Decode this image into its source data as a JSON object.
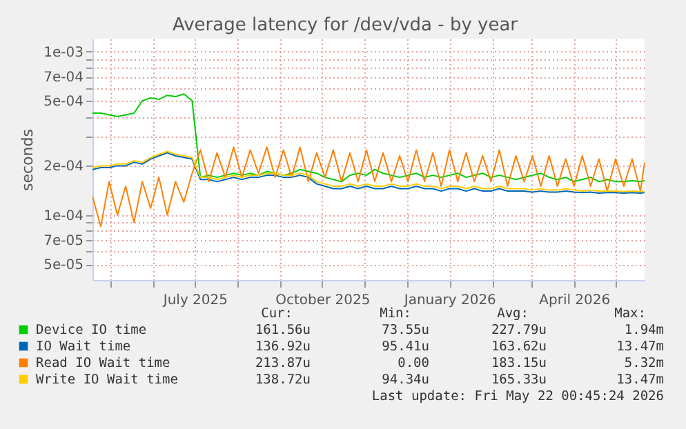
{
  "chart_data": {
    "type": "line",
    "title": "Average latency for /dev/vda - by year",
    "ylabel": "seconds",
    "log": true,
    "grid": true,
    "legend": "bottom",
    "line_style": "solid",
    "marker": "none",
    "xlim": [
      "2025-04-18",
      "2026-05-22"
    ],
    "xticks": [
      {
        "value": "2025-05-01",
        "label": null
      },
      {
        "value": "2025-06-01",
        "label": null
      },
      {
        "value": "2025-07-01",
        "label": "July 2025"
      },
      {
        "value": "2025-08-01",
        "label": null
      },
      {
        "value": "2025-09-01",
        "label": null
      },
      {
        "value": "2025-10-01",
        "label": "October 2025"
      },
      {
        "value": "2025-11-01",
        "label": null
      },
      {
        "value": "2025-12-01",
        "label": null
      },
      {
        "value": "2026-01-01",
        "label": "January 2026"
      },
      {
        "value": "2026-02-01",
        "label": null
      },
      {
        "value": "2026-03-01",
        "label": null
      },
      {
        "value": "2026-04-01",
        "label": "April 2026"
      },
      {
        "value": "2026-05-01",
        "label": null
      }
    ],
    "ylim": [
      4e-05,
      0.0012
    ],
    "yticks": [
      {
        "value": 5e-05,
        "label": "5e-05"
      },
      {
        "value": 6e-05,
        "label": null
      },
      {
        "value": 7e-05,
        "label": "7e-05"
      },
      {
        "value": 8e-05,
        "label": null
      },
      {
        "value": 9e-05,
        "label": null
      },
      {
        "value": 0.0001,
        "label": "1e-04"
      },
      {
        "value": 0.0002,
        "label": "2e-04"
      },
      {
        "value": 0.0003,
        "label": null
      },
      {
        "value": 0.0004,
        "label": null
      },
      {
        "value": 0.0005,
        "label": "5e-04"
      },
      {
        "value": 0.0006,
        "label": null
      },
      {
        "value": 0.0007,
        "label": "7e-04"
      },
      {
        "value": 0.0008,
        "label": null
      },
      {
        "value": 0.0009,
        "label": null
      },
      {
        "value": 0.001,
        "label": "1e-03"
      }
    ],
    "x": [
      "2025-04-18",
      "2025-04-24",
      "2025-04-30",
      "2025-05-06",
      "2025-05-12",
      "2025-05-18",
      "2025-05-24",
      "2025-05-30",
      "2025-06-05",
      "2025-06-11",
      "2025-06-17",
      "2025-06-23",
      "2025-06-29",
      "2025-07-05",
      "2025-07-11",
      "2025-07-17",
      "2025-07-23",
      "2025-07-29",
      "2025-08-04",
      "2025-08-10",
      "2025-08-16",
      "2025-08-22",
      "2025-08-28",
      "2025-09-03",
      "2025-09-09",
      "2025-09-15",
      "2025-09-21",
      "2025-09-27",
      "2025-10-03",
      "2025-10-09",
      "2025-10-15",
      "2025-10-21",
      "2025-10-27",
      "2025-11-02",
      "2025-11-08",
      "2025-11-14",
      "2025-11-20",
      "2025-11-26",
      "2025-12-02",
      "2025-12-08",
      "2025-12-14",
      "2025-12-20",
      "2025-12-26",
      "2026-01-01",
      "2026-01-07",
      "2026-01-13",
      "2026-01-19",
      "2026-01-25",
      "2026-01-31",
      "2026-02-06",
      "2026-02-12",
      "2026-02-18",
      "2026-02-24",
      "2026-03-02",
      "2026-03-08",
      "2026-03-14",
      "2026-03-20",
      "2026-03-26",
      "2026-04-01",
      "2026-04-07",
      "2026-04-13",
      "2026-04-19",
      "2026-04-25",
      "2026-05-01",
      "2026-05-07",
      "2026-05-13",
      "2026-05-19",
      "2026-05-22"
    ],
    "series": [
      {
        "name": "Device IO time",
        "color": "#00cc00",
        "values": [
          0.00042,
          0.00042,
          0.00041,
          0.0004,
          0.00041,
          0.00042,
          0.0005,
          0.00052,
          0.00051,
          0.00054,
          0.00053,
          0.00055,
          0.0005,
          0.00017,
          0.000175,
          0.00017,
          0.000175,
          0.00018,
          0.000175,
          0.00018,
          0.000175,
          0.000185,
          0.00018,
          0.000175,
          0.00018,
          0.00019,
          0.000185,
          0.00018,
          0.00017,
          0.000165,
          0.00016,
          0.000175,
          0.00018,
          0.000175,
          0.00019,
          0.00018,
          0.000175,
          0.00017,
          0.000175,
          0.00018,
          0.00017,
          0.000175,
          0.00017,
          0.000175,
          0.00018,
          0.00017,
          0.000175,
          0.00018,
          0.00017,
          0.000175,
          0.00017,
          0.000165,
          0.00017,
          0.000175,
          0.00018,
          0.00017,
          0.000165,
          0.00017,
          0.00016,
          0.000165,
          0.00017,
          0.00016,
          0.000165,
          0.00016,
          0.00016,
          0.000162,
          0.00016,
          0.000162
        ]
      },
      {
        "name": "IO Wait time",
        "color": "#0066b3",
        "values": [
          0.00019,
          0.000195,
          0.000195,
          0.0002,
          0.0002,
          0.00021,
          0.000205,
          0.00022,
          0.00023,
          0.00024,
          0.00023,
          0.000225,
          0.00022,
          0.000165,
          0.000165,
          0.00016,
          0.000165,
          0.00017,
          0.000165,
          0.00017,
          0.00017,
          0.000175,
          0.000175,
          0.00017,
          0.00017,
          0.000175,
          0.00017,
          0.000155,
          0.00015,
          0.000145,
          0.000145,
          0.00015,
          0.000145,
          0.00015,
          0.000145,
          0.000145,
          0.00015,
          0.000145,
          0.000145,
          0.00015,
          0.000145,
          0.000145,
          0.00014,
          0.000145,
          0.000145,
          0.00014,
          0.000145,
          0.00014,
          0.00014,
          0.000145,
          0.00014,
          0.00014,
          0.00014,
          0.000138,
          0.00014,
          0.000138,
          0.000138,
          0.00014,
          0.000138,
          0.000137,
          0.000138,
          0.000136,
          0.000137,
          0.000137,
          0.000136,
          0.000137,
          0.000136,
          0.000137
        ]
      },
      {
        "name": "Read IO Wait time",
        "color": "#ff8000",
        "values": [
          0.00013,
          8.5e-05,
          0.00016,
          0.0001,
          0.00015,
          9e-05,
          0.00016,
          0.00011,
          0.00017,
          0.0001,
          0.00016,
          0.00012,
          0.00018,
          0.00025,
          0.00016,
          0.00024,
          0.00017,
          0.00026,
          0.00017,
          0.00025,
          0.00018,
          0.00026,
          0.00017,
          0.00025,
          0.00017,
          0.00026,
          0.00016,
          0.00024,
          0.00017,
          0.00025,
          0.00016,
          0.00024,
          0.00016,
          0.00025,
          0.00016,
          0.00024,
          0.00016,
          0.00023,
          0.00016,
          0.00025,
          0.00016,
          0.00024,
          0.00015,
          0.00025,
          0.00016,
          0.00024,
          0.00016,
          0.00023,
          0.00016,
          0.00025,
          0.00015,
          0.00023,
          0.00016,
          0.00023,
          0.00015,
          0.00023,
          0.00015,
          0.00022,
          0.00015,
          0.00023,
          0.00015,
          0.00022,
          0.00014,
          0.00022,
          0.00015,
          0.00022,
          0.00014,
          0.00021
        ]
      },
      {
        "name": "Write IO Wait time",
        "color": "#ffcc00",
        "values": [
          0.000195,
          0.0002,
          0.0002,
          0.000205,
          0.000205,
          0.000215,
          0.00021,
          0.000225,
          0.000235,
          0.000245,
          0.000235,
          0.00023,
          0.000225,
          0.00017,
          0.00017,
          0.000165,
          0.00017,
          0.000175,
          0.00017,
          0.000175,
          0.000175,
          0.00018,
          0.00018,
          0.000175,
          0.000175,
          0.00018,
          0.000175,
          0.00016,
          0.000155,
          0.00015,
          0.00015,
          0.000155,
          0.00015,
          0.000155,
          0.00015,
          0.00015,
          0.000155,
          0.00015,
          0.00015,
          0.000155,
          0.00015,
          0.00015,
          0.000145,
          0.00015,
          0.00015,
          0.000145,
          0.00015,
          0.000145,
          0.000145,
          0.00015,
          0.000145,
          0.000145,
          0.000145,
          0.000142,
          0.000145,
          0.000142,
          0.000142,
          0.000145,
          0.000142,
          0.00014,
          0.000142,
          0.00014,
          0.00014,
          0.00014,
          0.000139,
          0.00014,
          0.000139,
          0.000139
        ]
      }
    ],
    "annotations": [
      "Cur:",
      "Min:",
      "Avg:",
      "Max:",
      "161.56u",
      "73.55u",
      "227.79u",
      "1.94m",
      "136.92u",
      "95.41u",
      "163.62u",
      "13.47m",
      "213.87u",
      "0.00",
      "183.15u",
      "5.32m",
      "138.72u",
      "94.34u",
      "165.33u",
      "13.47m",
      "Last update: Fri May 22 00:45:24 2026"
    ]
  }
}
